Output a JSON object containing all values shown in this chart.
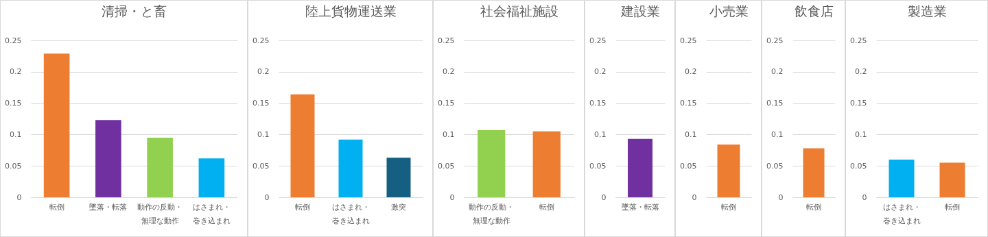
{
  "chart_data": [
    {
      "type": "bar",
      "title": "清掃・と畜",
      "categories": [
        "転倒",
        "墜落・転落",
        "動作の反動・無理な動作",
        "はさまれ・巻き込まれ"
      ],
      "values": [
        0.229,
        0.123,
        0.095,
        0.062
      ],
      "colors": [
        "#ed7d31",
        "#7030a0",
        "#92d050",
        "#00b0f0"
      ],
      "ylim": [
        0,
        0.25
      ],
      "yticks": [
        0,
        0.05,
        0.1,
        0.15,
        0.2,
        0.25
      ],
      "grid": "y"
    },
    {
      "type": "bar",
      "title": "陸上貨物運送業",
      "categories": [
        "転倒",
        "はさまれ・巻き込まれ",
        "激突"
      ],
      "values": [
        0.164,
        0.092,
        0.063
      ],
      "colors": [
        "#ed7d31",
        "#00b0f0",
        "#156082"
      ],
      "ylim": [
        0,
        0.25
      ],
      "yticks": [
        0,
        0.05,
        0.1,
        0.15,
        0.2,
        0.25
      ],
      "grid": "y"
    },
    {
      "type": "bar",
      "title": "社会福祉施設",
      "categories": [
        "動作の反動・無理な動作",
        "転倒"
      ],
      "values": [
        0.107,
        0.105
      ],
      "colors": [
        "#92d050",
        "#ed7d31"
      ],
      "ylim": [
        0,
        0.25
      ],
      "yticks": [
        0,
        0.05,
        0.1,
        0.15,
        0.2,
        0.25
      ],
      "grid": "y"
    },
    {
      "type": "bar",
      "title": "建設業",
      "categories": [
        "墜落・転落"
      ],
      "values": [
        0.093
      ],
      "colors": [
        "#7030a0"
      ],
      "ylim": [
        0,
        0.25
      ],
      "yticks": [
        0,
        0.05,
        0.1,
        0.15,
        0.2,
        0.25
      ],
      "grid": "y"
    },
    {
      "type": "bar",
      "title": "小売業",
      "categories": [
        "転倒"
      ],
      "values": [
        0.084
      ],
      "colors": [
        "#ed7d31"
      ],
      "ylim": [
        0,
        0.25
      ],
      "yticks": [
        0,
        0.05,
        0.1,
        0.15,
        0.2,
        0.25
      ],
      "grid": "y"
    },
    {
      "type": "bar",
      "title": "飲食店",
      "categories": [
        "転倒"
      ],
      "values": [
        0.078
      ],
      "colors": [
        "#ed7d31"
      ],
      "ylim": [
        0,
        0.25
      ],
      "yticks": [
        0,
        0.05,
        0.1,
        0.15,
        0.2,
        0.25
      ],
      "grid": "y"
    },
    {
      "type": "bar",
      "title": "製造業",
      "categories": [
        "はさまれ・巻き込まれ",
        "転倒"
      ],
      "values": [
        0.06,
        0.055
      ],
      "colors": [
        "#00b0f0",
        "#ed7d31"
      ],
      "ylim": [
        0,
        0.25
      ],
      "yticks": [
        0,
        0.05,
        0.1,
        0.15,
        0.2,
        0.25
      ],
      "grid": "y"
    }
  ]
}
